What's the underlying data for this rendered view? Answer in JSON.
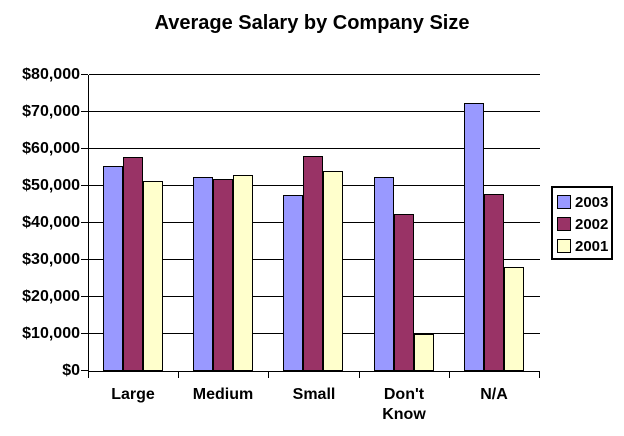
{
  "chart_data": {
    "type": "bar",
    "title": "Average Salary by Company Size",
    "categories": [
      "Large",
      "Medium",
      "Small",
      "Don't Know",
      "N/A"
    ],
    "series": [
      {
        "name": "2003",
        "color": "#9999FF",
        "values": [
          55400,
          52400,
          47500,
          52400,
          72500
        ]
      },
      {
        "name": "2002",
        "color": "#993366",
        "values": [
          57800,
          52000,
          58200,
          42500,
          47800
        ]
      },
      {
        "name": "2001",
        "color": "#FFFFCC",
        "values": [
          51400,
          53000,
          54000,
          10000,
          28000
        ]
      }
    ],
    "xlabel": "",
    "ylabel": "",
    "ylim": [
      0,
      80000
    ],
    "ytick_interval": 10000,
    "ytick_labels": [
      "$0",
      "$10,000",
      "$20,000",
      "$30,000",
      "$40,000",
      "$50,000",
      "$60,000",
      "$70,000",
      "$80,000"
    ],
    "grid": true,
    "legend_position": "right",
    "background_color": "#FFFFFF",
    "axis_color": "#000000",
    "bar_border_color": "#000000"
  }
}
